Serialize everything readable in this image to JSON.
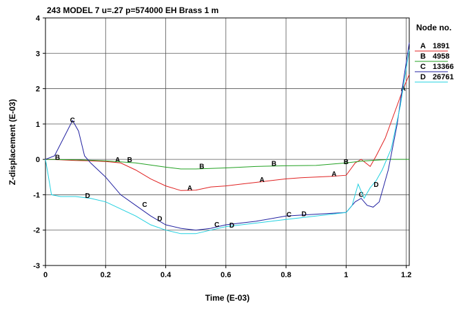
{
  "chart_data": {
    "type": "line",
    "title": "243 MODEL 7 u=.27 p=574000 EH Brass 1 m",
    "xlabel": "Time (E-03)",
    "ylabel": "Z-displacement (E-03)",
    "xlim": [
      0,
      1.21
    ],
    "ylim": [
      -3,
      4
    ],
    "x_ticks": [
      0,
      0.2,
      0.4,
      0.6,
      0.8,
      1,
      1.2
    ],
    "x_tick_labels": [
      "0",
      "0.2",
      "0.4",
      "0.6",
      "0.8",
      "1",
      "1.2"
    ],
    "y_ticks": [
      -3,
      -2,
      -1,
      0,
      1,
      2,
      3,
      4
    ],
    "y_tick_labels": [
      "-3",
      "-2",
      "-1",
      "0",
      "1",
      "2",
      "3",
      "4"
    ],
    "grid": true,
    "legend_title": "Node no.",
    "legend_position": "right",
    "series": [
      {
        "name": "1891",
        "letter": "A",
        "color": "#e02020",
        "x": [
          0,
          0.05,
          0.1,
          0.15,
          0.2,
          0.25,
          0.3,
          0.35,
          0.4,
          0.45,
          0.5,
          0.55,
          0.6,
          0.65,
          0.7,
          0.75,
          0.8,
          0.85,
          0.9,
          0.95,
          1.0,
          1.03,
          1.05,
          1.08,
          1.1,
          1.13,
          1.16,
          1.19,
          1.21
        ],
        "y": [
          0,
          -0.01,
          -0.03,
          -0.04,
          -0.06,
          -0.1,
          -0.3,
          -0.55,
          -0.75,
          -0.88,
          -0.87,
          -0.78,
          -0.75,
          -0.7,
          -0.65,
          -0.6,
          -0.55,
          -0.52,
          -0.5,
          -0.48,
          -0.45,
          -0.1,
          0.0,
          -0.2,
          0.1,
          0.6,
          1.3,
          2.0,
          2.4
        ],
        "label_x": [
          0.24,
          0.48,
          0.72,
          0.96,
          1.19
        ],
        "label_y": [
          -0.02,
          -0.82,
          -0.58,
          -0.42,
          2.0
        ]
      },
      {
        "name": "4958",
        "letter": "B",
        "color": "#20a020",
        "x": [
          0,
          0.1,
          0.2,
          0.3,
          0.4,
          0.45,
          0.5,
          0.6,
          0.7,
          0.8,
          0.9,
          1.0,
          1.05,
          1.1,
          1.15,
          1.21
        ],
        "y": [
          0.0,
          -0.01,
          -0.04,
          -0.1,
          -0.22,
          -0.27,
          -0.27,
          -0.24,
          -0.2,
          -0.18,
          -0.17,
          -0.1,
          -0.05,
          -0.02,
          0.0,
          0.0
        ],
        "label_x": [
          0.04,
          0.28,
          0.52,
          0.76,
          1.0
        ],
        "label_y": [
          0.05,
          -0.02,
          -0.2,
          -0.12,
          -0.08
        ]
      },
      {
        "name": "13366",
        "letter": "C",
        "color": "#2020a0",
        "x": [
          0,
          0.03,
          0.06,
          0.09,
          0.11,
          0.13,
          0.15,
          0.2,
          0.25,
          0.3,
          0.35,
          0.4,
          0.45,
          0.5,
          0.55,
          0.6,
          0.7,
          0.8,
          0.9,
          1.0,
          1.03,
          1.05,
          1.07,
          1.09,
          1.11,
          1.14,
          1.17,
          1.19,
          1.21
        ],
        "y": [
          0,
          0.1,
          0.6,
          1.1,
          0.8,
          0.1,
          -0.1,
          -0.5,
          -1.0,
          -1.3,
          -1.6,
          -1.85,
          -1.95,
          -2.0,
          -1.95,
          -1.85,
          -1.75,
          -1.6,
          -1.55,
          -1.5,
          -1.2,
          -1.1,
          -1.3,
          -1.35,
          -1.2,
          -0.3,
          1.0,
          2.2,
          3.3
        ],
        "label_x": [
          0.09,
          0.33,
          0.57,
          0.81,
          1.05
        ],
        "label_y": [
          1.1,
          -1.28,
          -1.85,
          -1.57,
          -1.0
        ]
      },
      {
        "name": "26761",
        "letter": "D",
        "color": "#20d0e0",
        "x": [
          0,
          0.01,
          0.02,
          0.05,
          0.1,
          0.15,
          0.2,
          0.25,
          0.3,
          0.35,
          0.4,
          0.45,
          0.5,
          0.55,
          0.6,
          0.7,
          0.8,
          0.9,
          1.0,
          1.02,
          1.04,
          1.06,
          1.08,
          1.1,
          1.12,
          1.15,
          1.18,
          1.21
        ],
        "y": [
          0,
          -0.5,
          -1.0,
          -1.05,
          -1.05,
          -1.1,
          -1.2,
          -1.4,
          -1.6,
          -1.85,
          -2.0,
          -2.1,
          -2.1,
          -2.0,
          -1.9,
          -1.8,
          -1.7,
          -1.6,
          -1.5,
          -1.3,
          -0.7,
          -1.1,
          -0.8,
          -0.6,
          -0.3,
          0.3,
          1.5,
          3.1
        ],
        "label_x": [
          0.14,
          0.38,
          0.62,
          0.86,
          1.1
        ],
        "label_y": [
          -1.03,
          -1.68,
          -1.87,
          -1.55,
          -0.72
        ]
      }
    ]
  }
}
